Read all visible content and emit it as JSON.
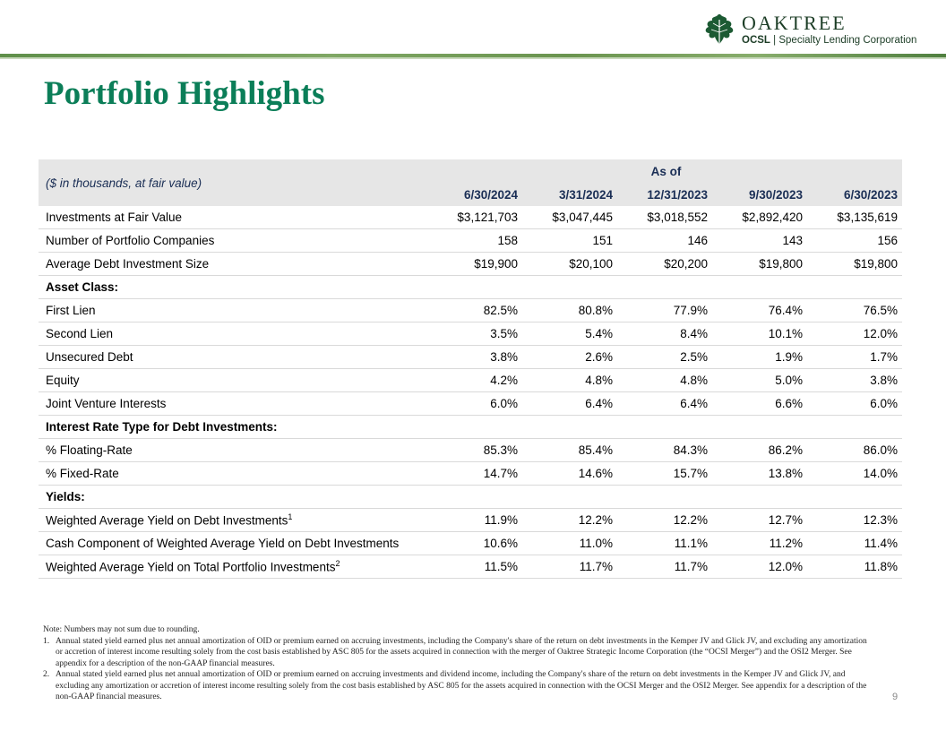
{
  "logo": {
    "icon": "oak-leaf-icon",
    "name": "OAKTREE",
    "ticker": "OCSL",
    "separator": "|",
    "company": "Specialty Lending Corporation"
  },
  "title": "Portfolio Highlights",
  "table": {
    "unit_note": "($ in thousands, at fair value)",
    "as_of_label": "As of",
    "dates": [
      "6/30/2024",
      "3/31/2024",
      "12/31/2023",
      "9/30/2023",
      "6/30/2023"
    ],
    "rows": [
      {
        "label": "Investments at Fair Value",
        "values": [
          "$3,121,703",
          "$3,047,445",
          "$3,018,552",
          "$2,892,420",
          "$3,135,619"
        ]
      },
      {
        "label": "Number of Portfolio Companies",
        "values": [
          "158",
          "151",
          "146",
          "143",
          "156"
        ]
      },
      {
        "label": "Average Debt Investment Size",
        "values": [
          "$19,900",
          "$20,100",
          "$20,200",
          "$19,800",
          "$19,800"
        ]
      },
      {
        "label": "Asset Class:",
        "section": true
      },
      {
        "label": "First Lien",
        "values": [
          "82.5%",
          "80.8%",
          "77.9%",
          "76.4%",
          "76.5%"
        ]
      },
      {
        "label": "Second Lien",
        "values": [
          "3.5%",
          "5.4%",
          "8.4%",
          "10.1%",
          "12.0%"
        ]
      },
      {
        "label": "Unsecured Debt",
        "values": [
          "3.8%",
          "2.6%",
          "2.5%",
          "1.9%",
          "1.7%"
        ]
      },
      {
        "label": "Equity",
        "values": [
          "4.2%",
          "4.8%",
          "4.8%",
          "5.0%",
          "3.8%"
        ]
      },
      {
        "label": "Joint Venture Interests",
        "values": [
          "6.0%",
          "6.4%",
          "6.4%",
          "6.6%",
          "6.0%"
        ]
      },
      {
        "label": "Interest Rate Type for Debt Investments:",
        "section": true
      },
      {
        "label": "% Floating-Rate",
        "values": [
          "85.3%",
          "85.4%",
          "84.3%",
          "86.2%",
          "86.0%"
        ]
      },
      {
        "label": "% Fixed-Rate",
        "values": [
          "14.7%",
          "14.6%",
          "15.7%",
          "13.8%",
          "14.0%"
        ]
      },
      {
        "label": "Yields:",
        "section": true
      },
      {
        "label": "Weighted Average Yield on Debt Investments",
        "sup": "1",
        "values": [
          "11.9%",
          "12.2%",
          "12.2%",
          "12.7%",
          "12.3%"
        ]
      },
      {
        "label": "Cash Component of Weighted Average Yield on Debt Investments",
        "values": [
          "10.6%",
          "11.0%",
          "11.1%",
          "11.2%",
          "11.4%"
        ]
      },
      {
        "label": "Weighted Average Yield on Total Portfolio Investments",
        "sup": "2",
        "values": [
          "11.5%",
          "11.7%",
          "11.7%",
          "12.0%",
          "11.8%"
        ]
      }
    ]
  },
  "notes": {
    "intro": "Note: Numbers may not sum due to rounding.",
    "footnotes": [
      {
        "num": "1.",
        "text": "Annual stated yield earned plus net annual amortization of OID or premium earned on accruing investments, including the Company's share of the return on debt investments in the Kemper JV and Glick JV, and excluding any amortization or accretion of interest income resulting solely from the cost basis established by ASC 805 for the assets acquired in connection with the merger of Oaktree Strategic Income Corporation (the “OCSI Merger”) and the OSI2 Merger. See appendix for a description of the non-GAAP financial measures."
      },
      {
        "num": "2.",
        "text": "Annual stated yield earned plus net annual amortization of OID or premium earned on accruing investments and dividend income, including the Company's share of the return on debt investments in the Kemper JV and Glick JV, and excluding any amortization or accretion of interest income resulting solely from the cost basis established by ASC 805 for the assets acquired in connection with the OCSI Merger and the OSI2 Merger. See appendix for a description of the non-GAAP financial measures."
      }
    ]
  },
  "page_number": "9"
}
